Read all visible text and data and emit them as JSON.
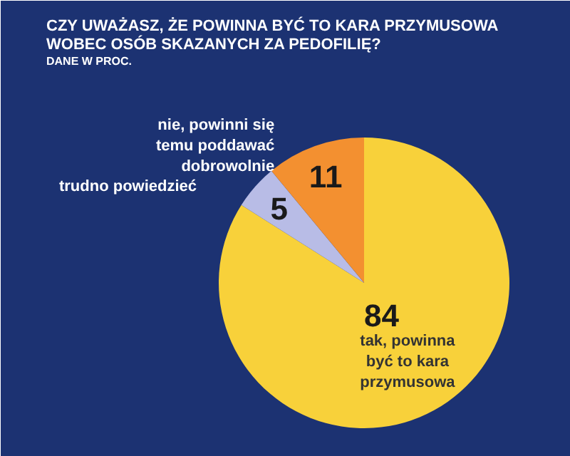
{
  "chart_data": {
    "type": "pie",
    "title": "CZY UWAŻASZ, ŻE POWINNA BYĆ TO KARA PRZYMUSOWA WOBEC OSÓB SKAZANYCH ZA PEDOFILIĘ?",
    "subtitle": "DANE W PROC.",
    "categories": [
      "tak, powinna być to kara przymusowa",
      "trudno powiedzieć",
      "nie, powinni się temu poddawać dobrowolnie"
    ],
    "values": [
      84,
      5,
      11
    ],
    "colors": [
      "#f8d13a",
      "#b8bce6",
      "#f39030"
    ],
    "data_labels": true
  }
}
